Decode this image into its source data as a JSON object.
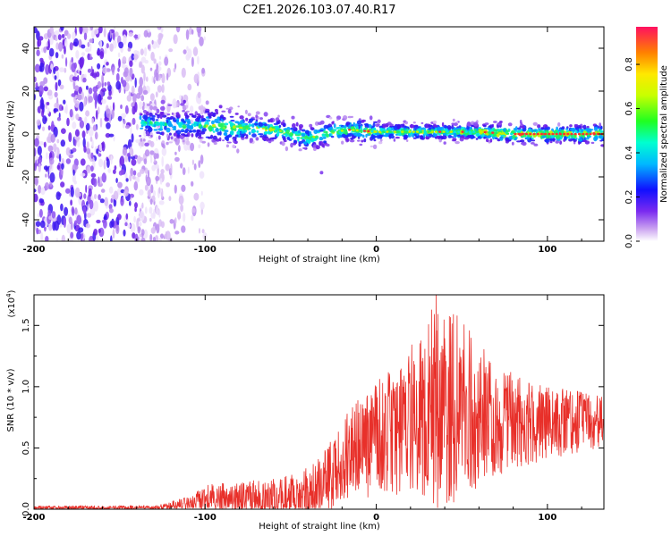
{
  "chart_data": [
    {
      "type": "heatmap",
      "title": "C2E1.2026.103.07.40.R17",
      "xlabel": "Height of straight line (km)",
      "ylabel": "Frequency (Hz)",
      "xlim": [
        -200,
        133
      ],
      "ylim": [
        -50,
        50
      ],
      "xticks": [
        -200,
        -100,
        0,
        100
      ],
      "yticks": [
        -40,
        -20,
        0,
        20,
        40
      ],
      "colorbar": {
        "label": "Normalized spectral amplitude",
        "range": [
          0,
          0.97
        ],
        "ticks": [
          0.0,
          0.2,
          0.4,
          0.6,
          0.8
        ]
      },
      "noise_band_x": [
        -200,
        -125
      ],
      "ridge": [
        {
          "x": -135,
          "f": 5
        },
        {
          "x": -120,
          "f": 4
        },
        {
          "x": -100,
          "f": 4
        },
        {
          "x": -80,
          "f": 3
        },
        {
          "x": -60,
          "f": 2
        },
        {
          "x": -40,
          "f": -2
        },
        {
          "x": -25,
          "f": 1
        },
        {
          "x": -15,
          "f": 2
        },
        {
          "x": 0,
          "f": 1
        },
        {
          "x": 20,
          "f": 1
        },
        {
          "x": 40,
          "f": 1
        },
        {
          "x": 60,
          "f": 1
        },
        {
          "x": 80,
          "f": 0
        },
        {
          "x": 100,
          "f": 0
        },
        {
          "x": 133,
          "f": 0
        }
      ]
    },
    {
      "type": "line",
      "xlabel": "Height of straight line (km)",
      "ylabel": "SNR (10 * v/v)",
      "yscale_label": "(x10",
      "yscale_exp": "4",
      "xlim": [
        -200,
        133
      ],
      "ylim": [
        0,
        1.75
      ],
      "xticks": [
        -200,
        -100,
        0,
        100
      ],
      "yticks": [
        0.0,
        0.5,
        1.0,
        1.5
      ],
      "series": [
        {
          "name": "SNR",
          "color": "#e8302a",
          "envelope": [
            {
              "x": -200,
              "base": 0.01,
              "amp": 0.02
            },
            {
              "x": -130,
              "base": 0.01,
              "amp": 0.02
            },
            {
              "x": -110,
              "base": 0.04,
              "amp": 0.06
            },
            {
              "x": -100,
              "base": 0.08,
              "amp": 0.12
            },
            {
              "x": -60,
              "base": 0.09,
              "amp": 0.16
            },
            {
              "x": -40,
              "base": 0.12,
              "amp": 0.22
            },
            {
              "x": -25,
              "base": 0.28,
              "amp": 0.3
            },
            {
              "x": -15,
              "base": 0.45,
              "amp": 0.4
            },
            {
              "x": 0,
              "base": 0.55,
              "amp": 0.5
            },
            {
              "x": 20,
              "base": 0.75,
              "amp": 0.6
            },
            {
              "x": 35,
              "base": 0.85,
              "amp": 0.85
            },
            {
              "x": 50,
              "base": 0.82,
              "amp": 0.75
            },
            {
              "x": 70,
              "base": 0.72,
              "amp": 0.45
            },
            {
              "x": 100,
              "base": 0.7,
              "amp": 0.3
            },
            {
              "x": 133,
              "base": 0.72,
              "amp": 0.22
            }
          ],
          "peak": {
            "x": 35,
            "y": 1.75
          }
        }
      ]
    }
  ]
}
